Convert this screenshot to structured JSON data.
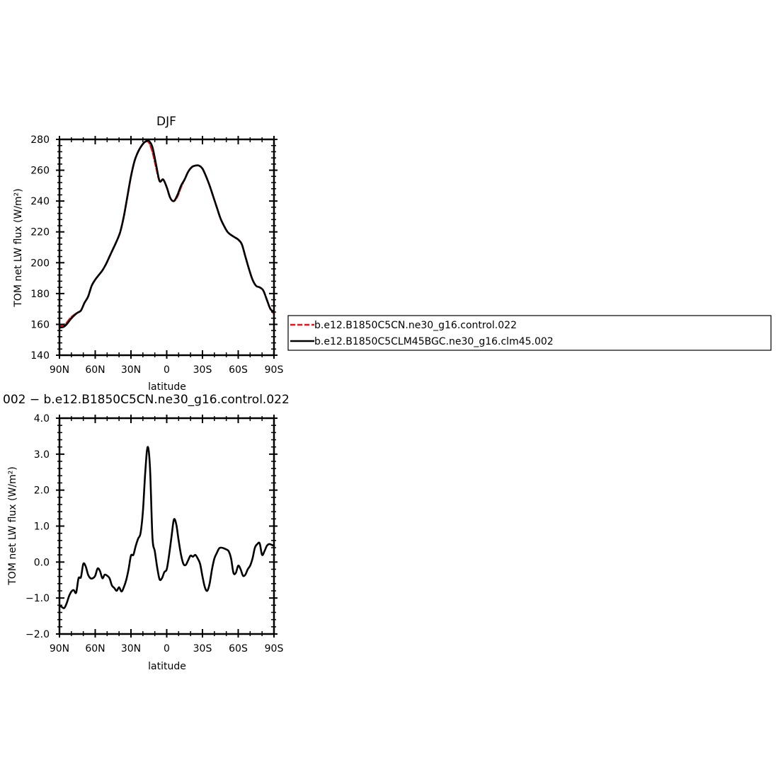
{
  "chart_data": [
    {
      "type": "line",
      "title": "DJF",
      "xlabel": "latitude",
      "ylabel": "TOM net LW flux (W/m²)",
      "xlim": [
        90,
        -90
      ],
      "ylim": [
        140,
        280
      ],
      "x_ticks": [
        {
          "value": 90,
          "label": "90N"
        },
        {
          "value": 60,
          "label": "60N"
        },
        {
          "value": 30,
          "label": "30N"
        },
        {
          "value": 0,
          "label": "0"
        },
        {
          "value": -30,
          "label": "30S"
        },
        {
          "value": -60,
          "label": "60S"
        },
        {
          "value": -90,
          "label": "90S"
        }
      ],
      "y_ticks": [
        140,
        160,
        180,
        200,
        220,
        240,
        260,
        280
      ],
      "legend": {
        "placement": "right",
        "entries": [
          "b.e12.B1850C5CN.ne30_g16.control.022",
          "b.e12.B1850C5CLM45BGC.ne30_g16.clm45.002"
        ]
      },
      "series": [
        {
          "name": "b.e12.B1850C5CN.ne30_g16.control.022",
          "color": "#e8141b",
          "dash": "dashed",
          "x": [
            90,
            87,
            84,
            81,
            78,
            75,
            72,
            69,
            66,
            63,
            60,
            57,
            54,
            51,
            48,
            45,
            42,
            39,
            36,
            33,
            30,
            27,
            24,
            21,
            18,
            15,
            12,
            9,
            6,
            3,
            0,
            -3,
            -6,
            -9,
            -12,
            -15,
            -18,
            -21,
            -24,
            -27,
            -30,
            -33,
            -36,
            -39,
            -42,
            -45,
            -48,
            -51,
            -54,
            -57,
            -60,
            -63,
            -66,
            -69,
            -72,
            -75,
            -78,
            -81,
            -84,
            -87,
            -90
          ],
          "y": [
            159,
            159.5,
            161,
            164,
            166,
            167.5,
            169,
            174,
            178,
            185,
            189,
            192,
            195,
            199,
            204,
            209,
            214,
            220,
            230,
            243,
            256,
            266,
            272,
            276,
            278.5,
            278,
            272,
            262,
            253,
            254,
            249,
            242,
            240,
            243,
            249,
            254,
            259,
            262,
            263,
            263,
            261,
            256,
            250,
            243,
            236,
            229,
            224,
            220,
            218,
            216.5,
            215,
            212,
            204,
            196,
            189,
            185,
            184,
            182,
            176,
            170,
            167
          ]
        },
        {
          "name": "b.e12.B1850C5CLM45BGC.ne30_g16.clm45.002",
          "color": "#000000",
          "dash": "solid",
          "x": [
            90,
            87,
            84,
            81,
            78,
            75,
            72,
            69,
            66,
            63,
            60,
            57,
            54,
            51,
            48,
            45,
            42,
            39,
            36,
            33,
            30,
            27,
            24,
            21,
            18,
            15,
            12,
            9,
            6,
            3,
            0,
            -3,
            -6,
            -9,
            -12,
            -15,
            -18,
            -21,
            -24,
            -27,
            -30,
            -33,
            -36,
            -39,
            -42,
            -45,
            -48,
            -51,
            -54,
            -57,
            -60,
            -63,
            -66,
            -69,
            -72,
            -75,
            -78,
            -81,
            -84,
            -87,
            -90
          ],
          "y": [
            158,
            158.2,
            160,
            163,
            165.5,
            167.5,
            169,
            174,
            178,
            185,
            189,
            192,
            195,
            199,
            204,
            209,
            214,
            220,
            230,
            243,
            256,
            266,
            272,
            276,
            278.5,
            279,
            275,
            264,
            253,
            254,
            249,
            242,
            240,
            244,
            250,
            254,
            259,
            262,
            263,
            263,
            261,
            256,
            250,
            243,
            236,
            229,
            224,
            220,
            218,
            216.5,
            215,
            212,
            204,
            196,
            189,
            185,
            184,
            182,
            176,
            170,
            168
          ]
        }
      ]
    },
    {
      "type": "line",
      "title": "002 − b.e12.B1850C5CN.ne30_g16.control.022",
      "xlabel": "latitude",
      "ylabel": "TOM net LW flux (W/m²)",
      "xlim": [
        90,
        -90
      ],
      "ylim": [
        -2.0,
        4.0
      ],
      "x_ticks": [
        {
          "value": 90,
          "label": "90N"
        },
        {
          "value": 60,
          "label": "60N"
        },
        {
          "value": 30,
          "label": "30N"
        },
        {
          "value": 0,
          "label": "0"
        },
        {
          "value": -30,
          "label": "30S"
        },
        {
          "value": -60,
          "label": "60S"
        },
        {
          "value": -90,
          "label": "90S"
        }
      ],
      "y_ticks": [
        {
          "value": -2,
          "label": "−2.0"
        },
        {
          "value": -1,
          "label": "−1.0"
        },
        {
          "value": 0,
          "label": "0.0"
        },
        {
          "value": 1,
          "label": "1.0"
        },
        {
          "value": 2,
          "label": "2.0"
        },
        {
          "value": 3,
          "label": "3.0"
        },
        {
          "value": 4,
          "label": "4.0"
        }
      ],
      "series": [
        {
          "color": "#000000",
          "dash": "solid",
          "x": [
            90,
            88,
            86,
            84,
            82,
            80,
            78,
            76,
            74,
            72,
            70,
            68,
            66,
            64,
            62,
            60,
            58,
            56,
            54,
            52,
            50,
            48,
            46,
            44,
            42,
            40,
            38,
            36,
            34,
            32,
            30,
            28,
            26,
            24,
            22,
            20,
            18,
            16,
            14,
            12,
            10,
            8,
            6,
            4,
            2,
            0,
            -2,
            -4,
            -6,
            -8,
            -10,
            -12,
            -14,
            -16,
            -18,
            -20,
            -22,
            -24,
            -26,
            -28,
            -30,
            -32,
            -34,
            -36,
            -38,
            -40,
            -42,
            -44,
            -46,
            -48,
            -50,
            -52,
            -54,
            -56,
            -58,
            -60,
            -62,
            -64,
            -66,
            -68,
            -70,
            -72,
            -74,
            -76,
            -78,
            -80,
            -82,
            -84,
            -86,
            -88,
            -90
          ],
          "y": [
            -1.2,
            -1.25,
            -1.28,
            -1.15,
            -0.95,
            -0.82,
            -0.78,
            -0.85,
            -0.45,
            -0.42,
            -0.05,
            -0.12,
            -0.35,
            -0.45,
            -0.45,
            -0.38,
            -0.18,
            -0.25,
            -0.45,
            -0.35,
            -0.38,
            -0.45,
            -0.65,
            -0.72,
            -0.8,
            -0.7,
            -0.82,
            -0.7,
            -0.5,
            -0.2,
            0.18,
            0.2,
            0.45,
            0.65,
            0.8,
            1.4,
            2.5,
            3.2,
            2.6,
            0.7,
            0.3,
            -0.15,
            -0.48,
            -0.45,
            -0.28,
            -0.2,
            0.2,
            0.7,
            1.18,
            1.05,
            0.6,
            0.2,
            -0.05,
            -0.08,
            0.05,
            0.18,
            0.15,
            0.2,
            0.1,
            -0.05,
            -0.4,
            -0.7,
            -0.8,
            -0.6,
            -0.2,
            0.1,
            0.25,
            0.38,
            0.4,
            0.38,
            0.35,
            0.3,
            0.1,
            -0.3,
            -0.3,
            -0.1,
            -0.2,
            -0.38,
            -0.35,
            -0.2,
            -0.1,
            0.1,
            0.4,
            0.5,
            0.52,
            0.2,
            0.3,
            0.45,
            0.5,
            0.48,
            0.45
          ]
        }
      ]
    }
  ]
}
